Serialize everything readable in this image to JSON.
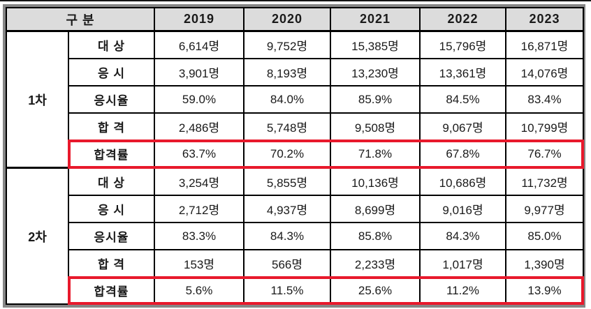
{
  "colors": {
    "header_bg": "#dcdcdc",
    "frame_gray": "#868686",
    "grid_black": "#000000",
    "highlight_red": "#e8192c"
  },
  "chart_data": {
    "type": "table",
    "category_header": "구 분",
    "year_columns": [
      "2019",
      "2020",
      "2021",
      "2022",
      "2023"
    ],
    "sections": [
      {
        "name": "1차",
        "rows": [
          {
            "label": "대 상",
            "highlight": false,
            "values": [
              "6,614명",
              "9,752명",
              "15,385명",
              "15,796명",
              "16,871명"
            ]
          },
          {
            "label": "응 시",
            "highlight": false,
            "values": [
              "3,901명",
              "8,193명",
              "13,230명",
              "13,361명",
              "14,076명"
            ]
          },
          {
            "label": "응시율",
            "highlight": false,
            "values": [
              "59.0%",
              "84.0%",
              "85.9%",
              "84.5%",
              "83.4%"
            ]
          },
          {
            "label": "합 격",
            "highlight": false,
            "values": [
              "2,486명",
              "5,748명",
              "9,508명",
              "9,067명",
              "10,799명"
            ]
          },
          {
            "label": "합격률",
            "highlight": true,
            "values": [
              "63.7%",
              "70.2%",
              "71.8%",
              "67.8%",
              "76.7%"
            ]
          }
        ]
      },
      {
        "name": "2차",
        "rows": [
          {
            "label": "대 상",
            "highlight": false,
            "values": [
              "3,254명",
              "5,855명",
              "10,136명",
              "10,686명",
              "11,732명"
            ]
          },
          {
            "label": "응 시",
            "highlight": false,
            "values": [
              "2,712명",
              "4,937명",
              "8,699명",
              "9,016명",
              "9,977명"
            ]
          },
          {
            "label": "응시율",
            "highlight": false,
            "values": [
              "83.3%",
              "84.3%",
              "85.8%",
              "84.3%",
              "85.0%"
            ]
          },
          {
            "label": "합 격",
            "highlight": false,
            "values": [
              "153명",
              "566명",
              "2,233명",
              "1,017명",
              "1,390명"
            ]
          },
          {
            "label": "합격률",
            "highlight": true,
            "values": [
              "5.6%",
              "11.5%",
              "25.6%",
              "11.2%",
              "13.9%"
            ]
          }
        ]
      }
    ]
  }
}
